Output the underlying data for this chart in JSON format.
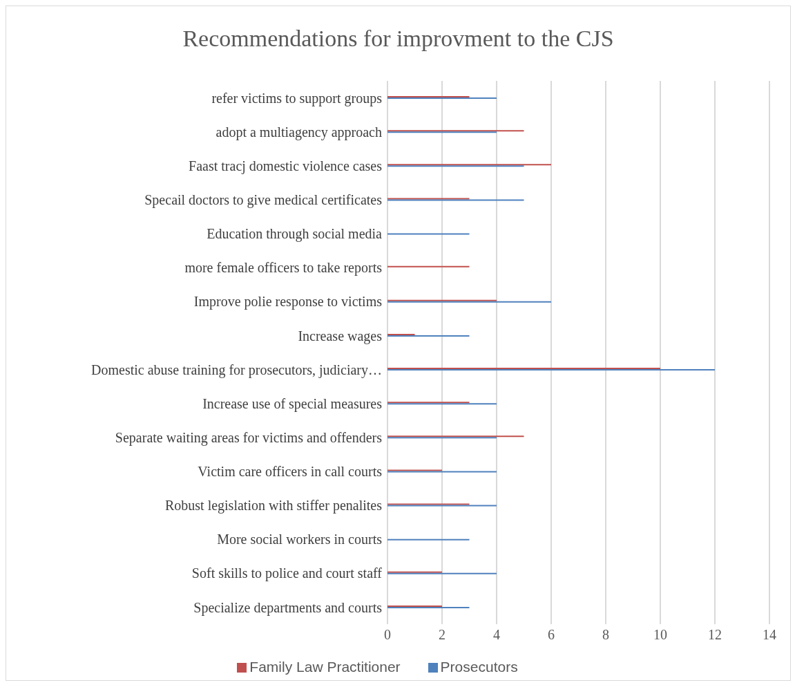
{
  "chart_data": {
    "type": "bar",
    "orientation": "horizontal",
    "title": "Recommendations for improvment to the CJS",
    "categories": [
      "refer victims to support groups",
      "adopt a multiagency approach",
      "Faast tracj domestic violence cases",
      "Specail doctors to give medical certificates",
      "Education through social media",
      "more female officers to take reports",
      "Improve polie response to victims",
      "Increase wages",
      "Domestic abuse training for prosecutors, judiciary…",
      "Increase use of special measures",
      "Separate waiting areas for victims and offenders ",
      "Victim care officers in call courts",
      "Robust legislation with stiffer penalites",
      "More social workers in courts",
      "Soft skills to police and court staff",
      "Specialize departments and courts "
    ],
    "series": [
      {
        "name": "Family Law Practitioner",
        "color": "#c0504d",
        "values": [
          3,
          5,
          6,
          3,
          null,
          3,
          4,
          1,
          10,
          3,
          5,
          2,
          3,
          null,
          2,
          2
        ]
      },
      {
        "name": "Prosecutors",
        "color": "#4f81bd",
        "values": [
          4,
          4,
          5,
          5,
          3,
          null,
          6,
          3,
          12,
          4,
          4,
          4,
          4,
          3,
          4,
          3
        ]
      }
    ],
    "xlim": [
      0,
      14
    ],
    "xticks": [
      0,
      2,
      4,
      6,
      8,
      10,
      12,
      14
    ],
    "grid": "x",
    "legend": "bottom"
  }
}
